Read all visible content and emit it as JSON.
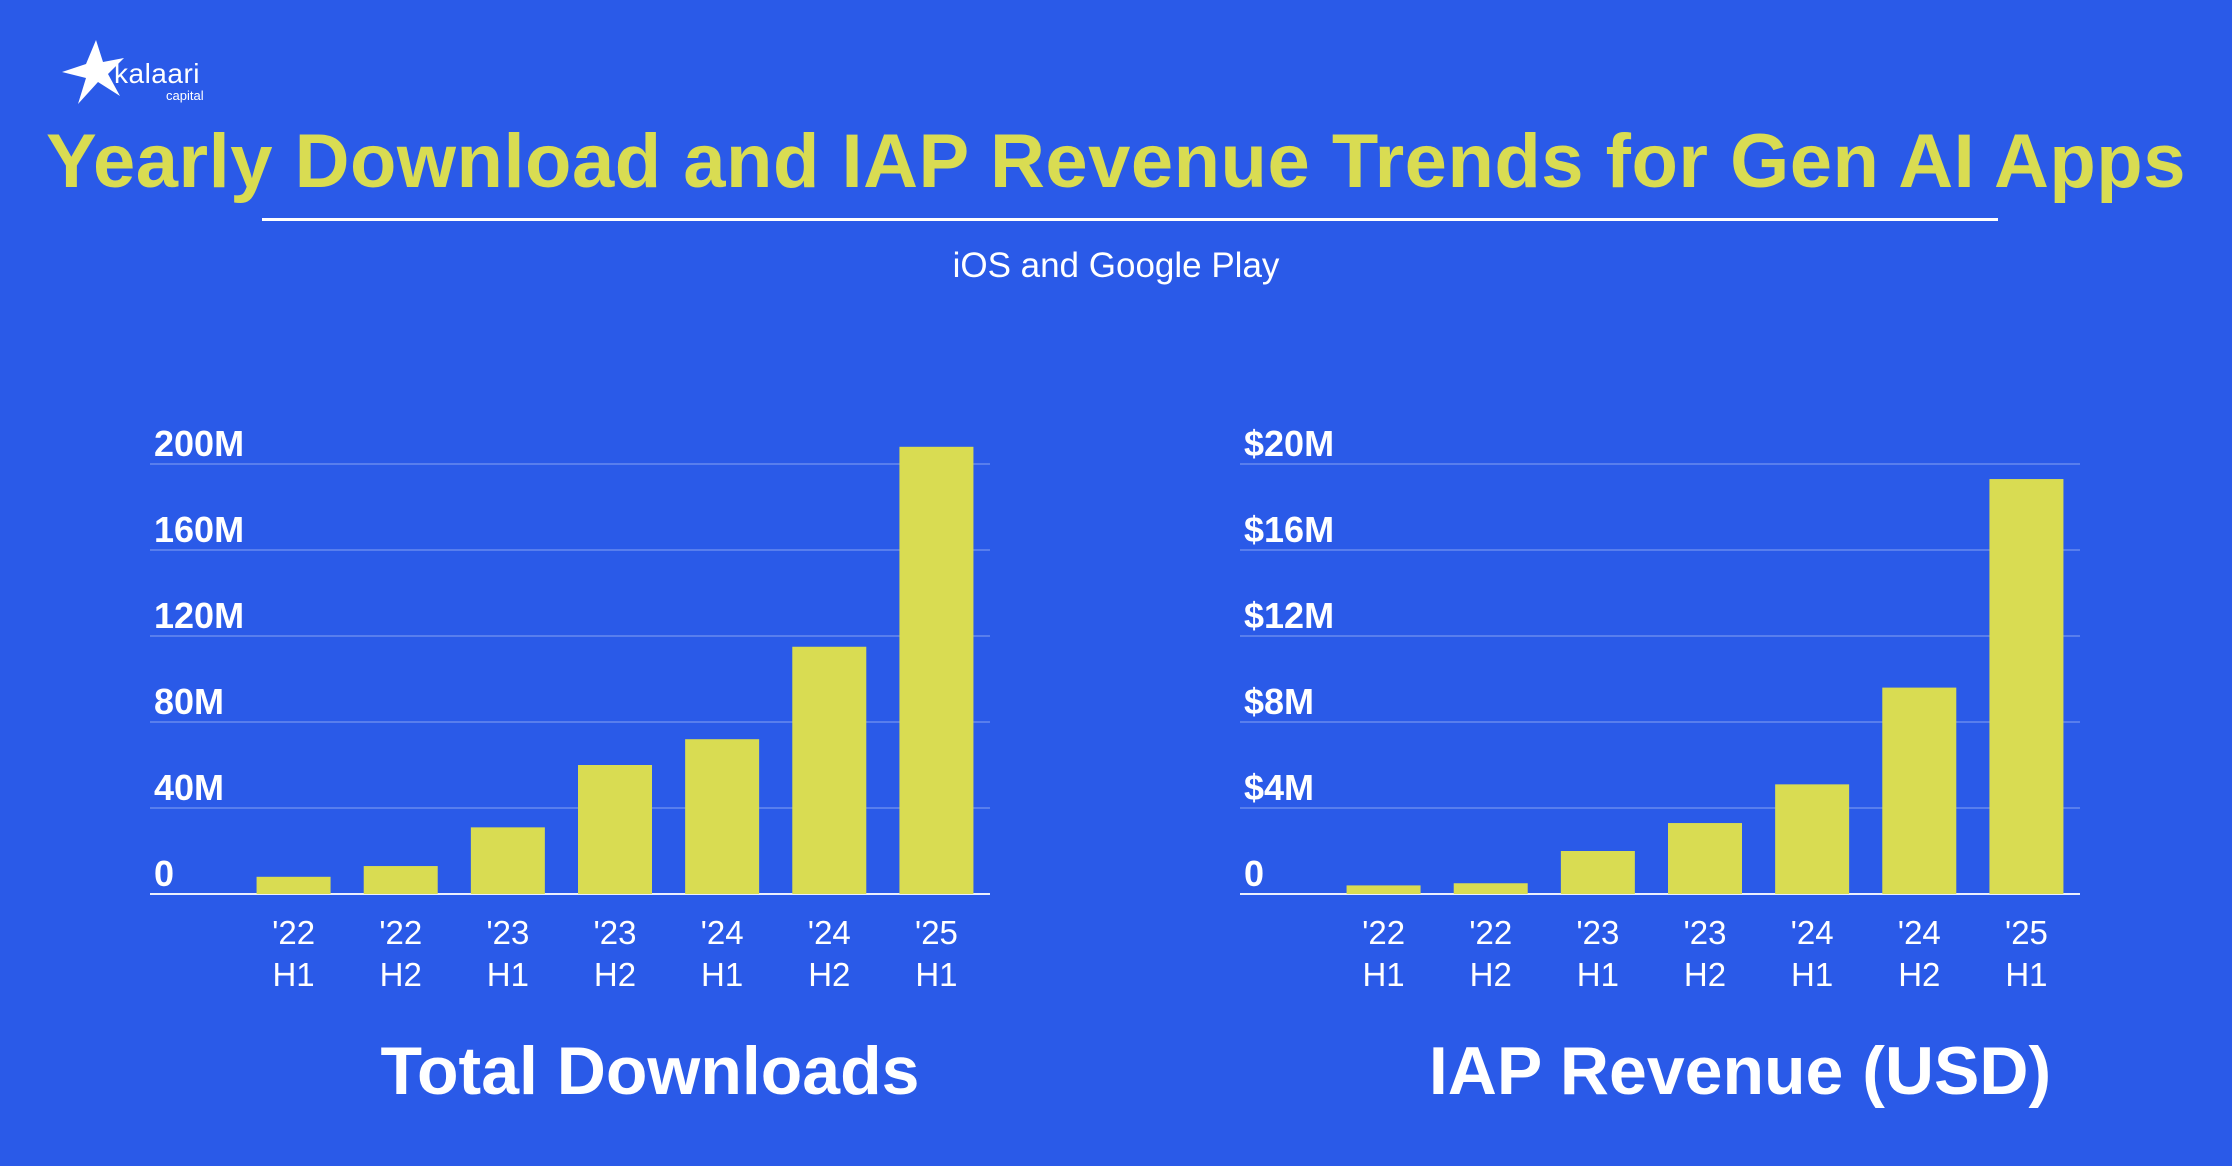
{
  "brand": {
    "name": "kalaari",
    "sub": "capital"
  },
  "title": "Yearly Download and IAP Revenue Trends for Gen AI Apps",
  "subtitle": "iOS and Google Play",
  "colors": {
    "background": "#2a5ae8",
    "bar": "#d9dc52",
    "title": "#d9dc52",
    "text": "#ffffff"
  },
  "chart_data": [
    {
      "type": "bar",
      "title": "Total Downloads",
      "categories": [
        [
          "'22",
          "H1"
        ],
        [
          "'22",
          "H2"
        ],
        [
          "'23",
          "H1"
        ],
        [
          "'23",
          "H2"
        ],
        [
          "'24",
          "H1"
        ],
        [
          "'24",
          "H2"
        ],
        [
          "'25",
          "H1"
        ]
      ],
      "values": [
        8,
        13,
        31,
        60,
        72,
        115,
        208
      ],
      "unit": "M",
      "yticks": [
        "0",
        "40M",
        "80M",
        "120M",
        "160M",
        "200M"
      ],
      "ytick_values": [
        0,
        40,
        80,
        120,
        160,
        200
      ],
      "ylim": [
        0,
        200
      ],
      "grid": true
    },
    {
      "type": "bar",
      "title": "IAP Revenue (USD)",
      "categories": [
        [
          "'22",
          "H1"
        ],
        [
          "'22",
          "H2"
        ],
        [
          "'23",
          "H1"
        ],
        [
          "'23",
          "H2"
        ],
        [
          "'24",
          "H1"
        ],
        [
          "'24",
          "H2"
        ],
        [
          "'25",
          "H1"
        ]
      ],
      "values": [
        0.4,
        0.5,
        2.0,
        3.3,
        5.1,
        9.6,
        19.3
      ],
      "unit": "$M",
      "yticks": [
        "0",
        "$4M",
        "$8M",
        "$12M",
        "$16M",
        "$20M"
      ],
      "ytick_values": [
        0,
        4,
        8,
        12,
        16,
        20
      ],
      "ylim": [
        0,
        20
      ],
      "grid": true
    }
  ]
}
